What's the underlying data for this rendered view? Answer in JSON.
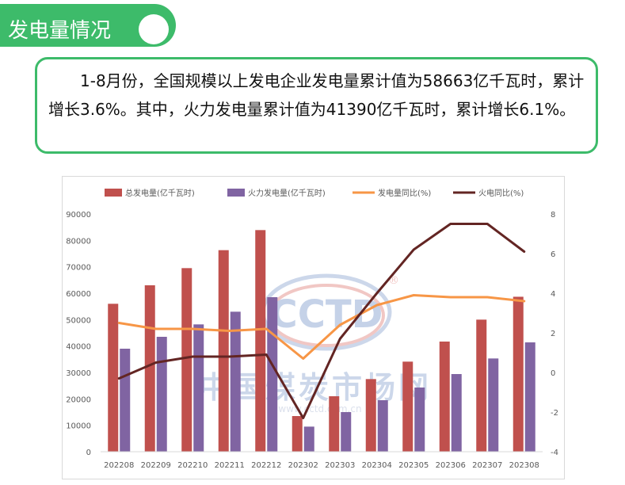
{
  "header": {
    "title": "发电量情况"
  },
  "summary": {
    "text": "1-8月份，全国规模以上发电企业发电量累计值为58663亿千瓦时，累计增长3.6%。其中，火力发电量累计值为41390亿千瓦时，累计增长6.1%。"
  },
  "watermark": {
    "logo": "CCTD",
    "registered": "®",
    "name": "中国煤炭市场网",
    "url": "www.cctd.com.cn"
  },
  "colors": {
    "accent": "#3dbb6a",
    "total_bar": "#c0504d",
    "thermal_bar": "#8064a2",
    "total_yoy": "#f79646",
    "thermal_yoy": "#632523"
  },
  "chart_data": {
    "type": "bar",
    "categories": [
      "202208",
      "202209",
      "202210",
      "202211",
      "202212",
      "202302",
      "202303",
      "202304",
      "202305",
      "202306",
      "202307",
      "202308"
    ],
    "series": [
      {
        "name": "总发电量(亿千瓦时)",
        "kind": "bar",
        "axis": "left",
        "color": "#c0504d",
        "values": [
          56000,
          63000,
          69500,
          76300,
          83900,
          13500,
          21000,
          27500,
          34100,
          41700,
          50000,
          58663
        ]
      },
      {
        "name": "火力发电量(亿千瓦时)",
        "kind": "bar",
        "axis": "left",
        "color": "#8064a2",
        "values": [
          39000,
          43500,
          48200,
          53000,
          58500,
          9500,
          15000,
          19500,
          24300,
          29400,
          35300,
          41390
        ]
      },
      {
        "name": "发电量同比(%)",
        "kind": "line",
        "axis": "right",
        "color": "#f79646",
        "values": [
          2.5,
          2.2,
          2.2,
          2.1,
          2.2,
          0.7,
          2.4,
          3.4,
          3.9,
          3.8,
          3.8,
          3.6
        ]
      },
      {
        "name": "火电同比(%)",
        "kind": "line",
        "axis": "right",
        "color": "#632523",
        "values": [
          -0.3,
          0.5,
          0.8,
          0.8,
          0.9,
          -2.3,
          1.7,
          4.0,
          6.2,
          7.5,
          7.5,
          6.1
        ]
      }
    ],
    "ylim": [
      0,
      90000
    ],
    "y_ticks": [
      0,
      10000,
      20000,
      30000,
      40000,
      50000,
      60000,
      70000,
      80000,
      90000
    ],
    "y2lim": [
      -4,
      8
    ],
    "y2_ticks": [
      -4,
      -2,
      0,
      2,
      4,
      6,
      8
    ],
    "legend_position": "top",
    "grid": false
  }
}
